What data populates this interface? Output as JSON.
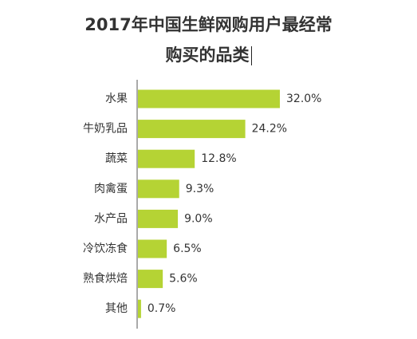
{
  "title_line1": "2017年中国生鲜网购用户最经常",
  "title_line2": "购买的品类",
  "colors": {
    "bar": "#b5d334",
    "axis": "#555555",
    "text": "#333333"
  },
  "chart_data": {
    "type": "bar",
    "orientation": "horizontal",
    "title": "2017年中国生鲜网购用户最经常购买的品类",
    "categories": [
      "水果",
      "牛奶乳品",
      "蔬菜",
      "肉禽蛋",
      "水产品",
      "冷饮冻食",
      "熟食烘焙",
      "其他"
    ],
    "values": [
      32.0,
      24.2,
      12.8,
      9.3,
      9.0,
      6.5,
      5.6,
      0.7
    ],
    "value_labels": [
      "32.0%",
      "24.2%",
      "12.8%",
      "9.3%",
      "9.0%",
      "6.5%",
      "5.6%",
      "0.7%"
    ],
    "unit": "%",
    "xlim": [
      0,
      32.0
    ],
    "grid": false,
    "legend": "none"
  }
}
